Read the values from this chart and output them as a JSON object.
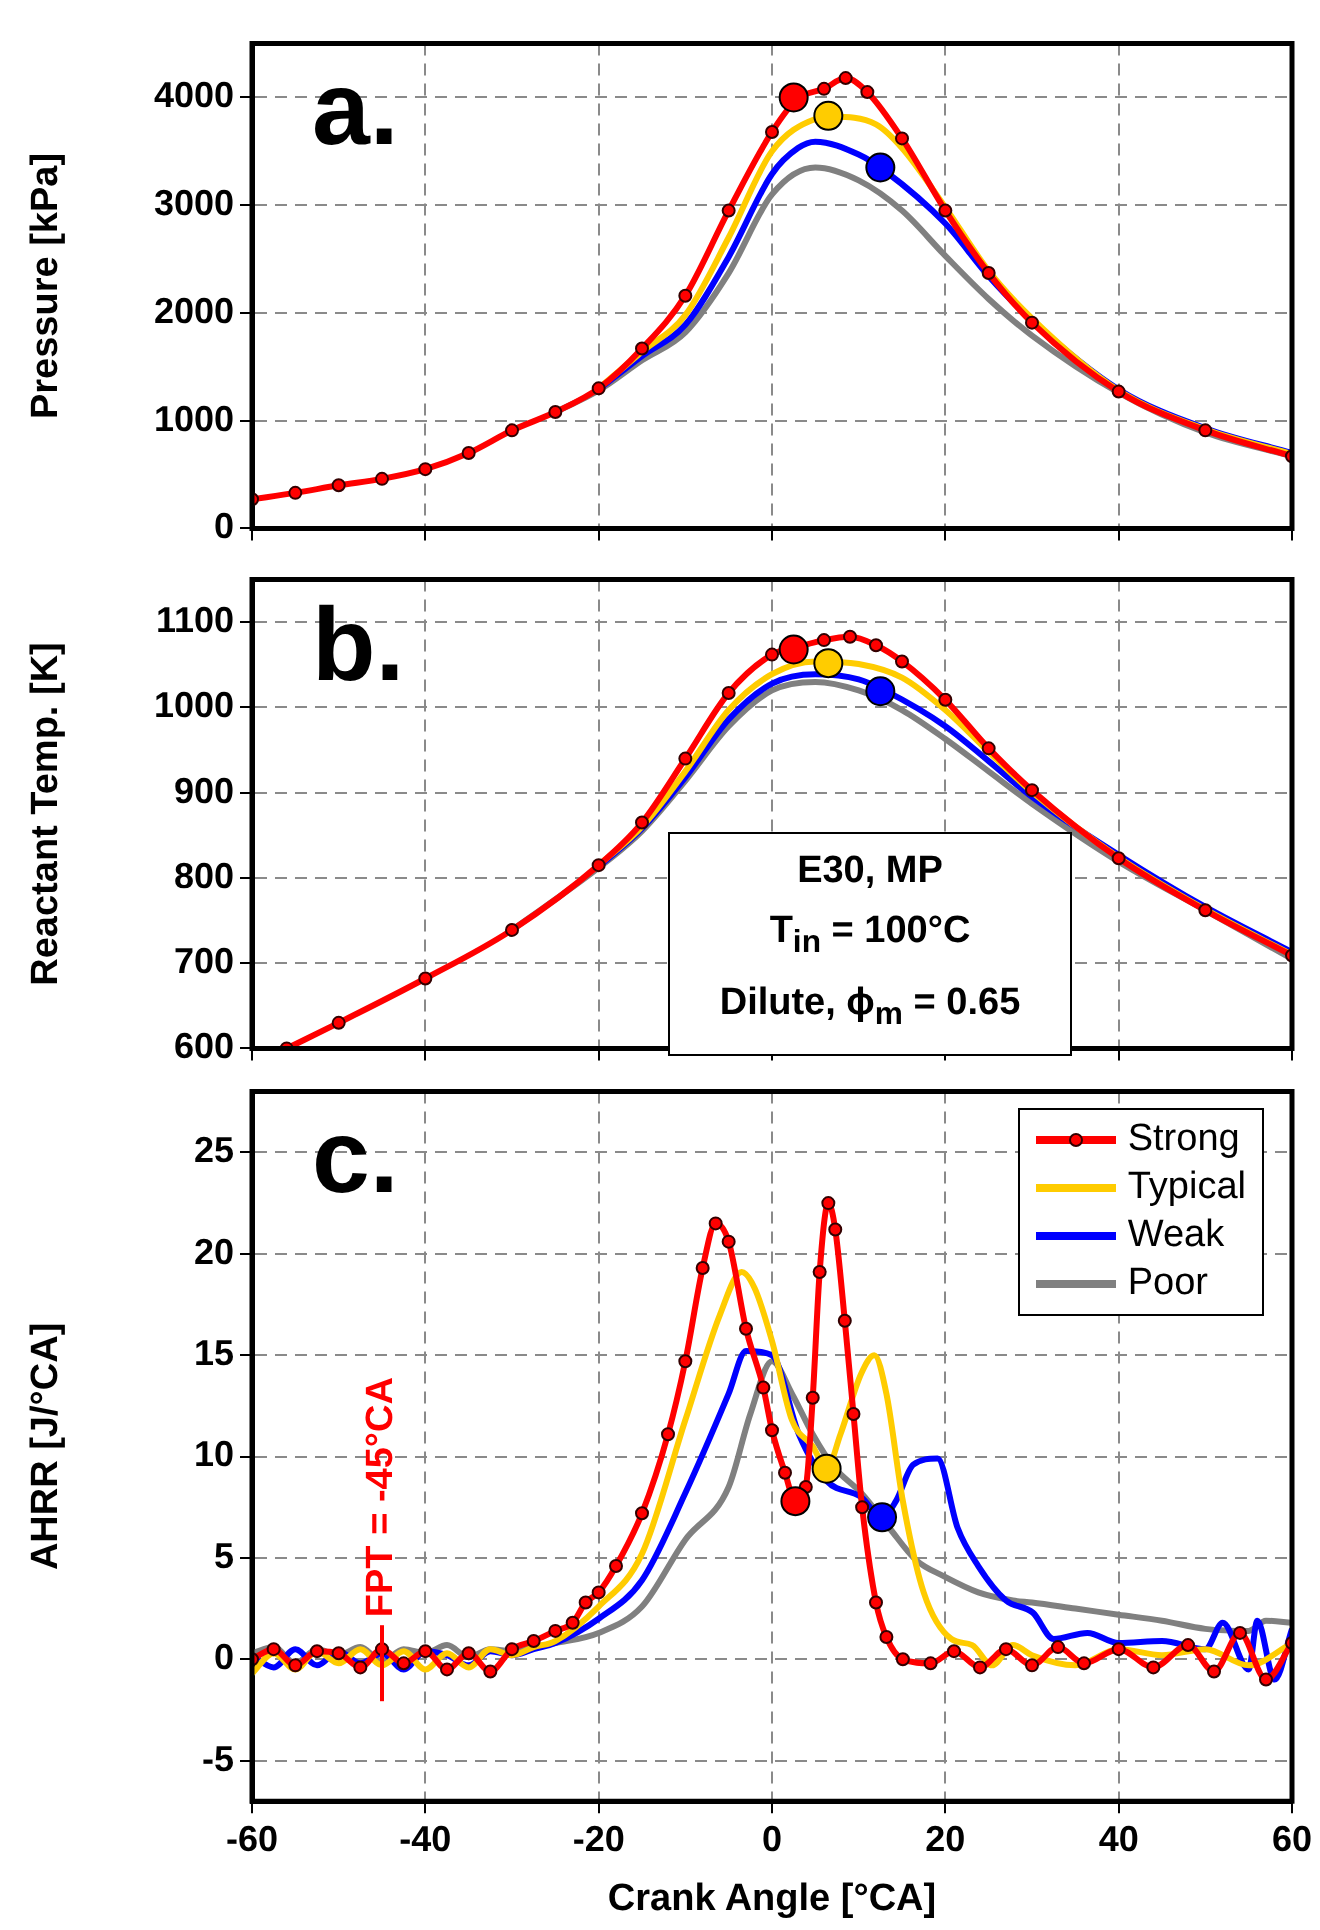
{
  "chart_data": [
    {
      "type": "line",
      "title": "a.",
      "ylabel": "Pressure [kPa]",
      "xlim": [
        -60,
        60
      ],
      "xticks": [
        -60,
        -40,
        -20,
        0,
        20,
        40,
        60
      ],
      "ylim": [
        0,
        4500
      ],
      "yticks": [
        0,
        1000,
        2000,
        3000,
        4000
      ],
      "grid": true,
      "legend": false,
      "tick_labels": "y",
      "marker": "none",
      "series": [
        {
          "color": "#ff0000",
          "marker": "circle",
          "x": [
            -60,
            -55,
            -50,
            -45,
            -40,
            -35,
            -30,
            -25,
            -20,
            -15,
            -10,
            -5,
            0,
            3,
            6,
            8.5,
            11,
            15,
            20,
            25,
            30,
            40,
            50,
            60
          ],
          "values": [
            270,
            330,
            400,
            460,
            550,
            700,
            910,
            1080,
            1300,
            1670,
            2160,
            2950,
            3680,
            3990,
            4080,
            4180,
            4050,
            3620,
            2950,
            2370,
            1910,
            1270,
            910,
            670
          ]
        },
        {
          "color": "#ffcc00",
          "x": [
            -20,
            -15,
            -10,
            -5,
            0,
            5,
            7,
            12,
            15,
            20,
            25,
            30,
            40,
            50,
            60
          ],
          "values": [
            1300,
            1640,
            1980,
            2700,
            3500,
            3800,
            3820,
            3750,
            3530,
            2980,
            2390,
            1950,
            1280,
            920,
            690
          ]
        },
        {
          "color": "#0000ff",
          "x": [
            -20,
            -15,
            -10,
            -5,
            0,
            3,
            5,
            10,
            13,
            20,
            25,
            30,
            40,
            50,
            60
          ],
          "values": [
            1290,
            1600,
            1890,
            2520,
            3290,
            3530,
            3590,
            3470,
            3320,
            2830,
            2340,
            1930,
            1290,
            930,
            700
          ]
        },
        {
          "color": "#808080",
          "x": [
            -25,
            -20,
            -15,
            -10,
            -5,
            0,
            5,
            10,
            15,
            20,
            25,
            30,
            40,
            50,
            60
          ],
          "values": [
            1080,
            1280,
            1560,
            1820,
            2370,
            3100,
            3350,
            3230,
            2950,
            2530,
            2130,
            1790,
            1260,
            890,
            670
          ]
        },
        {
          "type": "scatter",
          "marker": "circle",
          "color": "#ff0000",
          "x": [
            2.5
          ],
          "values": [
            4000
          ]
        },
        {
          "type": "scatter",
          "marker": "circle",
          "color": "#ffcc00",
          "x": [
            6.5
          ],
          "values": [
            3830
          ]
        },
        {
          "type": "scatter",
          "marker": "circle",
          "color": "#0000ff",
          "x": [
            12.5
          ],
          "values": [
            3350
          ]
        }
      ]
    },
    {
      "type": "line",
      "title": "b.",
      "ylabel": "Reactant Temp. [K]",
      "xlim": [
        -60,
        60
      ],
      "xticks": [
        -60,
        -40,
        -20,
        0,
        20,
        40,
        60
      ],
      "ylim": [
        600,
        1150
      ],
      "yticks": [
        600,
        700,
        800,
        900,
        1000,
        1100
      ],
      "grid": true,
      "legend": false,
      "tick_labels": "y",
      "marker": "none",
      "annotations": [
        "E30, MP",
        "T$_{in}$ = 100°C",
        "Dilute, ϕ$_{m}$ = 0.65"
      ],
      "series": [
        {
          "color": "#ff0000",
          "marker": "circle",
          "x": [
            -56,
            -50,
            -40,
            -30,
            -20,
            -15,
            -10,
            -5,
            0,
            3,
            6,
            9,
            12,
            15,
            20,
            25,
            30,
            40,
            50,
            60
          ],
          "values": [
            600,
            630,
            682,
            739,
            815,
            865,
            940,
            1017,
            1062,
            1071,
            1079,
            1083,
            1073,
            1054,
            1009,
            952,
            903,
            823,
            762,
            709
          ]
        },
        {
          "color": "#ffcc00",
          "x": [
            -20,
            -15,
            -10,
            -5,
            0,
            5,
            10,
            15,
            20,
            25,
            30,
            40,
            50,
            60
          ],
          "values": [
            815,
            860,
            925,
            997,
            1039,
            1054,
            1051,
            1035,
            997,
            948,
            901,
            824,
            763,
            710
          ]
        },
        {
          "color": "#0000ff",
          "x": [
            -20,
            -15,
            -10,
            -5,
            0,
            5,
            10,
            13,
            20,
            25,
            30,
            40,
            50,
            60
          ],
          "values": [
            813,
            858,
            918,
            986,
            1028,
            1039,
            1033,
            1020,
            978,
            937,
            895,
            827,
            766,
            713
          ]
        },
        {
          "color": "#808080",
          "x": [
            -30,
            -20,
            -15,
            -10,
            -5,
            0,
            5,
            10,
            15,
            20,
            25,
            30,
            40,
            50,
            60
          ],
          "values": [
            739,
            812,
            855,
            914,
            978,
            1020,
            1030,
            1020,
            997,
            963,
            925,
            887,
            819,
            762,
            705
          ]
        },
        {
          "type": "scatter",
          "marker": "circle",
          "color": "#ff0000",
          "x": [
            2.5
          ],
          "values": [
            1068
          ]
        },
        {
          "type": "scatter",
          "marker": "circle",
          "color": "#ffcc00",
          "x": [
            6.5
          ],
          "values": [
            1052
          ]
        },
        {
          "type": "scatter",
          "marker": "circle",
          "color": "#0000ff",
          "x": [
            12.5
          ],
          "values": [
            1019
          ]
        }
      ]
    },
    {
      "type": "line",
      "title": "c.",
      "xlabel": "Crank Angle [°CA]",
      "ylabel": "AHRR [J/°CA]",
      "xlim": [
        -60,
        60
      ],
      "xticks": [
        -60,
        -40,
        -20,
        0,
        20,
        40,
        60
      ],
      "ylim": [
        -7,
        28
      ],
      "yticks": [
        -5,
        0,
        5,
        10,
        15,
        20,
        25
      ],
      "grid": true,
      "legend": "top right",
      "marker": "none",
      "ref_lines": [
        {
          "axis": "x",
          "value": -45,
          "label": "FPT = -45°CA",
          "color": "#ff0000"
        }
      ],
      "series": [
        {
          "name": "Strong",
          "color": "#ff0000",
          "marker": "circle",
          "x": [
            -60,
            -57.5,
            -55,
            -52.5,
            -50,
            -47.5,
            -45,
            -42.5,
            -40,
            -37.5,
            -35,
            -32.5,
            -30,
            -27.5,
            -25,
            -23,
            -21.5,
            -20,
            -18,
            -15,
            -12,
            -10,
            -8,
            -6.5,
            -5,
            -3,
            -1,
            0,
            1.5,
            2.7,
            3.9,
            4.7,
            5.5,
            6.5,
            7.3,
            8.4,
            9.4,
            10.4,
            12,
            13.2,
            15.1,
            18.3,
            21,
            24,
            27,
            30,
            33,
            36,
            40,
            44,
            48,
            51,
            54,
            57,
            60
          ],
          "values": [
            0,
            0.5,
            -0.3,
            0.4,
            0.3,
            -0.4,
            0.5,
            -0.2,
            0.4,
            -0.5,
            0.3,
            -0.6,
            0.5,
            0.9,
            1.4,
            1.8,
            2.8,
            3.3,
            4.6,
            7.2,
            11.1,
            14.7,
            19.3,
            21.5,
            20.6,
            16.3,
            13.4,
            11.3,
            9.2,
            7.8,
            8.5,
            12.9,
            19.1,
            22.5,
            21.2,
            16.7,
            12.1,
            7.5,
            2.8,
            1.1,
            0,
            -0.2,
            0.4,
            -0.4,
            0.5,
            -0.3,
            0.6,
            -0.2,
            0.5,
            -0.4,
            0.7,
            -0.6,
            1.3,
            -1,
            0.8
          ]
        },
        {
          "name": "Typical",
          "color": "#ffcc00",
          "x": [
            -60,
            -57.5,
            -55,
            -52.5,
            -50,
            -47.5,
            -45,
            -42.5,
            -40,
            -37.5,
            -35,
            -32.5,
            -30,
            -27.5,
            -25,
            -20,
            -15,
            -10,
            -6,
            -3.5,
            -2,
            0,
            2.3,
            4.7,
            6.3,
            7.9,
            10.3,
            11.8,
            13.2,
            15.1,
            17.5,
            20.7,
            23.1,
            25.4,
            27.8,
            30,
            35,
            40,
            45,
            50,
            55,
            60
          ],
          "values": [
            -0.7,
            0.3,
            -0.5,
            0.4,
            -0.2,
            0.5,
            -0.3,
            0.4,
            -0.5,
            0.3,
            -0.4,
            0.5,
            0.2,
            0.6,
            0.9,
            2.6,
            5.2,
            11.8,
            17,
            19.1,
            18.3,
            15.7,
            11.8,
            10.5,
            9.4,
            11.1,
            14.1,
            15,
            13.1,
            7.8,
            3.3,
            1,
            0.7,
            -0.3,
            0.7,
            0.2,
            -0.3,
            0.5,
            0.2,
            0.5,
            -0.3,
            0.8
          ]
        },
        {
          "name": "Weak",
          "color": "#0000ff",
          "x": [
            -60,
            -57.5,
            -55,
            -52.5,
            -50,
            -47.5,
            -45,
            -42.5,
            -40,
            -37.5,
            -35,
            -32.5,
            -30,
            -27.5,
            -25,
            -20,
            -15,
            -10,
            -5,
            -3,
            0,
            3.1,
            6.3,
            10.3,
            12.7,
            14.3,
            16.3,
            19.1,
            21.4,
            23.8,
            27,
            30.1,
            32.5,
            36.4,
            40,
            45,
            50,
            52,
            55,
            56,
            58,
            60
          ],
          "values": [
            0.2,
            -0.4,
            0.5,
            -0.3,
            0.4,
            -0.2,
            0.3,
            -0.5,
            0.4,
            0.2,
            -0.3,
            0.4,
            0.2,
            0.5,
            0.8,
            2,
            3.9,
            8.2,
            13.1,
            15.2,
            15,
            11.1,
            8.8,
            8,
            7,
            7.8,
            9.6,
            9.9,
            6.5,
            4.6,
            2.9,
            2.3,
            1,
            1.3,
            0.8,
            0.9,
            0.5,
            1.8,
            -0.5,
            1.9,
            -1,
            1.5
          ]
        },
        {
          "name": "Poor",
          "color": "#808080",
          "x": [
            -60,
            -57.5,
            -55,
            -52.5,
            -50,
            -47.5,
            -45,
            -42.5,
            -40,
            -37.5,
            -35,
            -32.5,
            -30,
            -27.5,
            -25,
            -20,
            -15,
            -10,
            -5,
            -2.5,
            0,
            2.3,
            4.7,
            7.1,
            10.3,
            13.5,
            16.6,
            19.8,
            23.8,
            27.8,
            30,
            35,
            40,
            45,
            50,
            55,
            57,
            60
          ],
          "values": [
            0.3,
            0.6,
            -0.2,
            0.5,
            0.2,
            0.6,
            -0.1,
            0.5,
            0.3,
            0.7,
            0.1,
            0.5,
            0.4,
            0.6,
            0.8,
            1.3,
            2.6,
            5.9,
            8.5,
            12.1,
            14.7,
            13.1,
            11.1,
            9.5,
            8.2,
            6.5,
            4.9,
            4.1,
            3.3,
            2.9,
            2.8,
            2.5,
            2.2,
            1.9,
            1.5,
            1.4,
            1.9,
            1.8
          ]
        },
        {
          "type": "scatter",
          "marker": "circle",
          "color": "#ff0000",
          "x": [
            2.7
          ],
          "values": [
            7.8
          ]
        },
        {
          "type": "scatter",
          "marker": "circle",
          "color": "#ffcc00",
          "x": [
            6.3
          ],
          "values": [
            9.4
          ]
        },
        {
          "type": "scatter",
          "marker": "circle",
          "color": "#0000ff",
          "x": [
            12.7
          ],
          "values": [
            7
          ]
        }
      ]
    }
  ]
}
